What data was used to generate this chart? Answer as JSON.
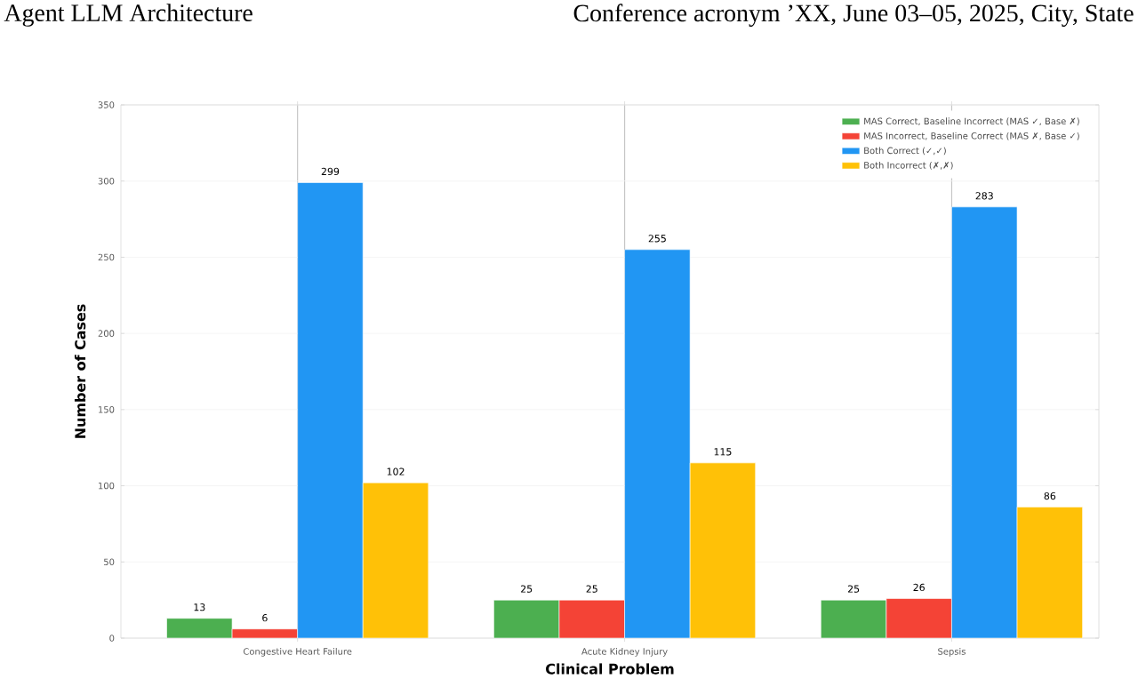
{
  "chart_data": {
    "type": "bar",
    "xlabel": "Clinical Problem",
    "ylabel": "Number of Cases",
    "categories": [
      "Congestive Heart Failure",
      "Acute Kidney Injury",
      "Sepsis"
    ],
    "series": [
      {
        "name": "MAS Correct, Baseline Incorrect (MAS ✓, Base ✗)",
        "color": "#4caf50",
        "values": [
          13,
          25,
          25
        ]
      },
      {
        "name": "MAS Incorrect, Baseline Correct (MAS ✗, Base ✓)",
        "color": "#f44336",
        "values": [
          6,
          25,
          26
        ]
      },
      {
        "name": "Both Correct (✓,✓)",
        "color": "#2196f3",
        "values": [
          299,
          255,
          283
        ]
      },
      {
        "name": "Both Incorrect (✗,✗)",
        "color": "#ffc107",
        "values": [
          102,
          115,
          86
        ]
      }
    ],
    "ylim": [
      0,
      350
    ],
    "yticks": [
      0,
      50,
      100,
      150,
      200,
      250,
      300,
      350
    ],
    "grid": true,
    "legend": "top right",
    "data_labels": true,
    "annotations": [
      "Agent LLM Architecture",
      "Conference acronym ’XX, June 03–05, 2025, City, State"
    ]
  }
}
